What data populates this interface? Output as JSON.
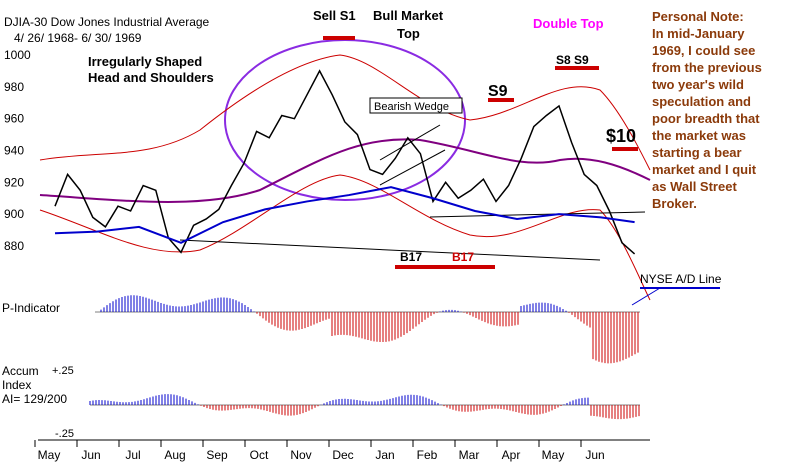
{
  "chart_data": {
    "type": "line",
    "title": "DJIA-30  Dow Jones Industrial Average",
    "subtitle": "4/ 26/ 1968- 6/ 30/ 1969",
    "x_ticks": [
      "May",
      "Jun",
      "Jul",
      "Aug",
      "Sep",
      "Oct",
      "Nov",
      "Dec",
      "Jan",
      "Feb",
      "Mar",
      "Apr",
      "May",
      "Jun"
    ],
    "y_ticks": [
      880,
      900,
      920,
      940,
      960,
      980,
      1000
    ],
    "ylim": [
      862,
      1012
    ],
    "series": [
      {
        "x": [
          0,
          0.3,
          0.6,
          0.9,
          1.2,
          1.5,
          1.8,
          2.1,
          2.4,
          2.7,
          3.0,
          3.3,
          3.6,
          3.9,
          4.2,
          4.5,
          4.8,
          5.1,
          5.4,
          5.7,
          6.0,
          6.3,
          6.6,
          6.9,
          7.2,
          7.5,
          7.8,
          8.1,
          8.4,
          8.7,
          9.0,
          9.3,
          9.6,
          9.9,
          10.2,
          10.5,
          10.8,
          11.1,
          11.4,
          11.7,
          12.0,
          12.3,
          12.6,
          12.9,
          13.2,
          13.5,
          13.8
        ],
        "y": [
          905,
          925,
          915,
          898,
          892,
          905,
          902,
          918,
          915,
          885,
          876,
          893,
          897,
          903,
          918,
          932,
          952,
          948,
          962,
          960,
          975,
          990,
          975,
          958,
          950,
          928,
          925,
          935,
          948,
          938,
          908,
          920,
          910,
          915,
          922,
          908,
          918,
          935,
          955,
          962,
          968,
          945,
          925,
          918,
          902,
          882,
          875
        ]
      },
      {
        "x": [
          0,
          1.0,
          2.0,
          3.0,
          4.0,
          5.0,
          6.0,
          7.0,
          8.0,
          9.0,
          10.0,
          11.0,
          12.0,
          13.0,
          13.8
        ],
        "y": [
          888,
          889,
          892,
          882,
          895,
          903,
          908,
          912,
          917,
          910,
          902,
          897,
          900,
          898,
          895
        ]
      }
    ],
    "annotations": {
      "sell_s1": "Sell S1",
      "bull_top": "Bull Market",
      "bull_top2": "Top",
      "hs1": "Irregularly Shaped",
      "hs2": "Head and Shoulders",
      "wedge": "Bearish Wedge",
      "s9": "S9",
      "double_top": "Double Top",
      "s8s9": "S8 S9",
      "s10": "$10",
      "b17": "B17",
      "b17b": "B17",
      "nyse": "NYSE A/D Line"
    },
    "indicators": {
      "p_indicator": "P-Indicator",
      "accum1": "Accum",
      "accum2": "Index",
      "accum3": "AI= 129/200",
      "plus25": "+.25",
      "minus25": "-.25"
    }
  },
  "note": {
    "l1": "Personal Note:",
    "l2": "In mid-January",
    "l3": "1969, I could see",
    "l4": "from the previous",
    "l5": "two year's wild",
    "l6": "speculation and",
    "l7": "poor breadth that",
    "l8": "the market was",
    "l9": "starting a bear",
    "l10": "market and I quit",
    "l11": "as Wall Street",
    "l12": "Broker."
  },
  "colors": {
    "price": "#000000",
    "band": "#cc0000",
    "ad_line": "#0000cc",
    "ma": "#800080",
    "circle": "#8a2be2",
    "note": "#8b3a0a",
    "double_top": "#ff00ff"
  }
}
